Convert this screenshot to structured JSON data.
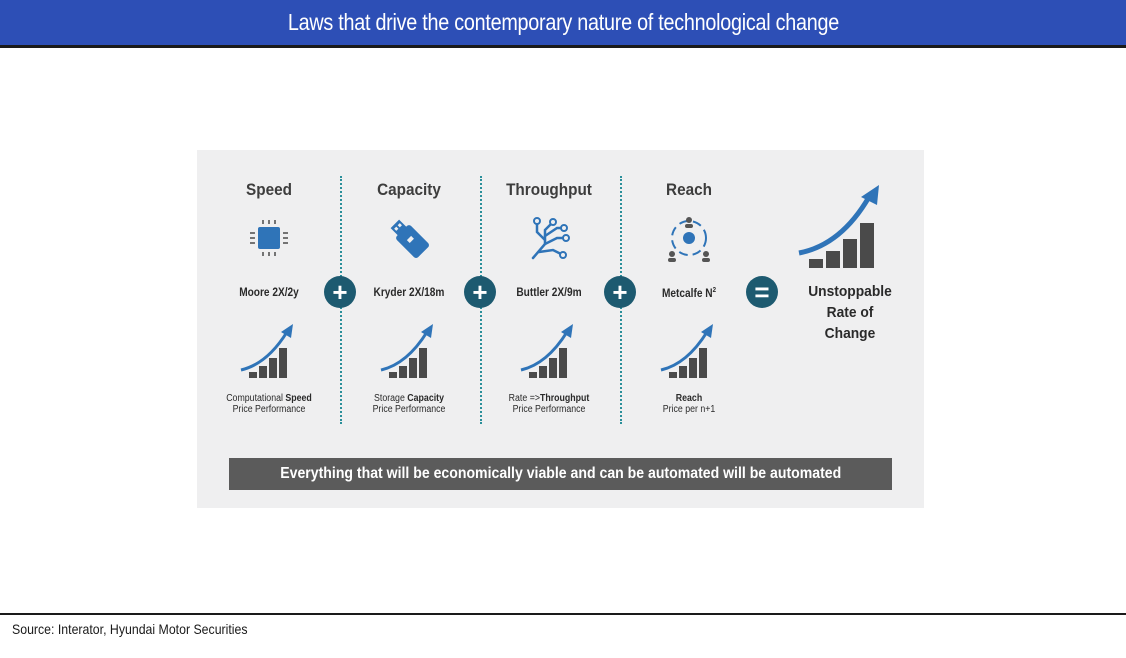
{
  "title": "Laws that drive the contemporary nature of technological change",
  "columns": [
    {
      "heading": "Speed",
      "law": "Moore 2X/2y",
      "caption_pre": "Computational ",
      "caption_bold": "Speed",
      "caption_post": "",
      "caption_line2": "Price Performance",
      "icon": "chip-icon"
    },
    {
      "heading": "Capacity",
      "law": "Kryder 2X/18m",
      "caption_pre": "Storage ",
      "caption_bold": "Capacity",
      "caption_post": "",
      "caption_line2": "Price Performance",
      "icon": "usb-drive-icon"
    },
    {
      "heading": "Throughput",
      "law": "Buttler 2X/9m",
      "caption_pre": "Rate =>",
      "caption_bold": "Throughput",
      "caption_post": "",
      "caption_line2": "Price Performance",
      "icon": "circuit-icon"
    },
    {
      "heading": "Reach",
      "law": "Metcalfe N",
      "law_sup": "2",
      "caption_pre": "",
      "caption_bold": "Reach",
      "caption_post": "",
      "caption_line2": "Price per n+1",
      "icon": "network-people-icon"
    }
  ],
  "operators": {
    "plus": "+",
    "equals": "="
  },
  "result": {
    "line1": "Unstoppable",
    "line2": "Rate of",
    "line3": "Change"
  },
  "banner": "Everything that will be economically viable and can be automated will be automated",
  "source": "Source: Interator, Hyundai Motor Securities",
  "colors": {
    "title_bar": "#2d4fb6",
    "accent_blue": "#2f74b8",
    "operator": "#1d5a70",
    "divider": "#2a8f9a",
    "banner": "#5b5b5b"
  }
}
